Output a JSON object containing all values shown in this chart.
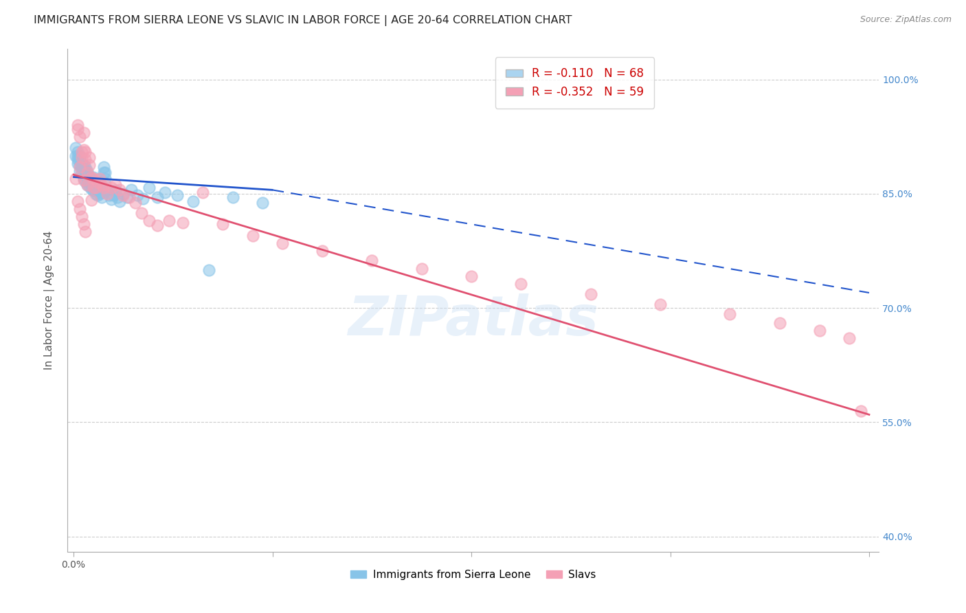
{
  "title": "IMMIGRANTS FROM SIERRA LEONE VS SLAVIC IN LABOR FORCE | AGE 20-64 CORRELATION CHART",
  "source": "Source: ZipAtlas.com",
  "ylabel": "In Labor Force | Age 20-64",
  "xlim": [
    -0.003,
    0.405
  ],
  "ylim": [
    0.38,
    1.04
  ],
  "ytick_labels": [
    "40.0%",
    "55.0%",
    "70.0%",
    "85.0%",
    "100.0%"
  ],
  "ytick_values": [
    0.4,
    0.55,
    0.7,
    0.85,
    1.0
  ],
  "xtick_labels": [
    "0.0%",
    "",
    "",
    "",
    ""
  ],
  "xtick_values": [
    0.0,
    0.1,
    0.2,
    0.3,
    0.4
  ],
  "R1": -0.11,
  "N1": 68,
  "R2": -0.352,
  "N2": 59,
  "legend_color1": "#aad4f0",
  "legend_color2": "#f4a0b5",
  "scatter_color1": "#88c4e8",
  "scatter_color2": "#f4a0b5",
  "line_color1": "#2255cc",
  "line_color2": "#e05070",
  "watermark": "ZIPatlas",
  "sl_x": [
    0.001,
    0.001,
    0.002,
    0.002,
    0.002,
    0.002,
    0.003,
    0.003,
    0.003,
    0.003,
    0.004,
    0.004,
    0.004,
    0.005,
    0.005,
    0.005,
    0.005,
    0.006,
    0.006,
    0.006,
    0.006,
    0.007,
    0.007,
    0.007,
    0.007,
    0.008,
    0.008,
    0.008,
    0.009,
    0.009,
    0.009,
    0.01,
    0.01,
    0.01,
    0.01,
    0.011,
    0.011,
    0.011,
    0.012,
    0.012,
    0.013,
    0.013,
    0.014,
    0.014,
    0.015,
    0.015,
    0.016,
    0.016,
    0.017,
    0.018,
    0.019,
    0.02,
    0.021,
    0.022,
    0.023,
    0.025,
    0.027,
    0.029,
    0.032,
    0.035,
    0.038,
    0.042,
    0.046,
    0.052,
    0.06,
    0.068,
    0.08,
    0.095
  ],
  "sl_y": [
    0.9,
    0.91,
    0.89,
    0.895,
    0.9,
    0.905,
    0.88,
    0.888,
    0.895,
    0.9,
    0.878,
    0.885,
    0.89,
    0.87,
    0.876,
    0.882,
    0.888,
    0.866,
    0.873,
    0.879,
    0.885,
    0.862,
    0.868,
    0.875,
    0.88,
    0.86,
    0.866,
    0.872,
    0.856,
    0.863,
    0.87,
    0.854,
    0.86,
    0.866,
    0.872,
    0.85,
    0.858,
    0.864,
    0.848,
    0.855,
    0.85,
    0.858,
    0.845,
    0.852,
    0.878,
    0.885,
    0.87,
    0.878,
    0.855,
    0.848,
    0.843,
    0.848,
    0.854,
    0.845,
    0.84,
    0.85,
    0.845,
    0.855,
    0.848,
    0.844,
    0.858,
    0.845,
    0.852,
    0.848,
    0.84,
    0.75,
    0.845,
    0.838
  ],
  "sv_x": [
    0.001,
    0.002,
    0.002,
    0.003,
    0.003,
    0.004,
    0.004,
    0.005,
    0.005,
    0.005,
    0.006,
    0.006,
    0.007,
    0.007,
    0.008,
    0.008,
    0.009,
    0.009,
    0.01,
    0.01,
    0.011,
    0.012,
    0.013,
    0.014,
    0.015,
    0.016,
    0.017,
    0.019,
    0.021,
    0.023,
    0.025,
    0.028,
    0.031,
    0.034,
    0.038,
    0.042,
    0.048,
    0.055,
    0.065,
    0.075,
    0.09,
    0.105,
    0.125,
    0.15,
    0.175,
    0.2,
    0.225,
    0.26,
    0.295,
    0.33,
    0.355,
    0.375,
    0.39,
    0.396,
    0.002,
    0.003,
    0.004,
    0.005,
    0.006
  ],
  "sv_y": [
    0.87,
    0.94,
    0.935,
    0.885,
    0.925,
    0.898,
    0.905,
    0.868,
    0.93,
    0.908,
    0.895,
    0.905,
    0.862,
    0.878,
    0.888,
    0.898,
    0.842,
    0.872,
    0.858,
    0.87,
    0.858,
    0.865,
    0.87,
    0.862,
    0.858,
    0.862,
    0.85,
    0.858,
    0.862,
    0.855,
    0.848,
    0.845,
    0.838,
    0.825,
    0.815,
    0.808,
    0.815,
    0.812,
    0.852,
    0.81,
    0.795,
    0.785,
    0.775,
    0.762,
    0.752,
    0.742,
    0.732,
    0.718,
    0.705,
    0.692,
    0.68,
    0.67,
    0.66,
    0.565,
    0.84,
    0.83,
    0.82,
    0.81,
    0.8
  ],
  "background_color": "#ffffff",
  "title_fontsize": 11.5,
  "label_fontsize": 11,
  "tick_fontsize": 10,
  "right_label_color": "#4488cc"
}
